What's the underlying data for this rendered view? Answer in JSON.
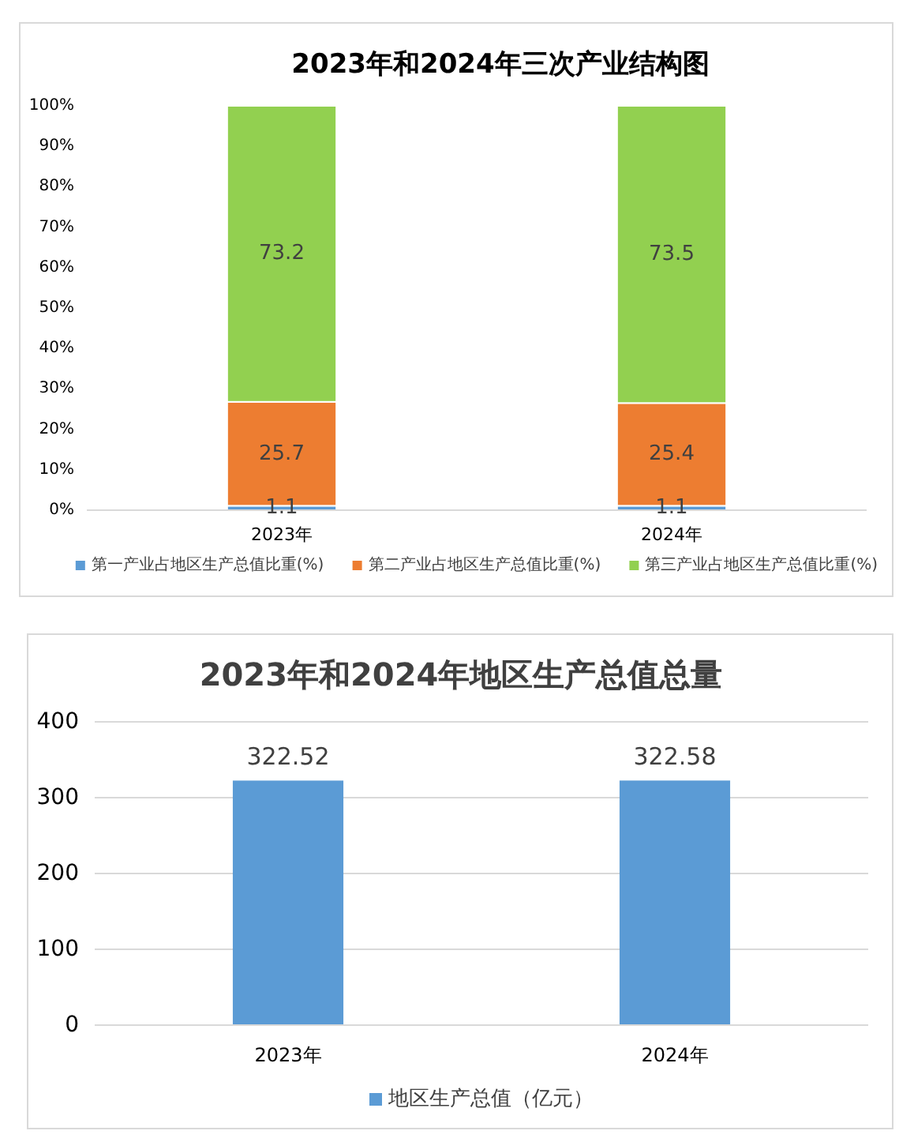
{
  "chart_data": [
    {
      "type": "bar",
      "title": "2023年和2024年三次产业结构图",
      "categories": [
        "2023年",
        "2024年"
      ],
      "stacked": true,
      "series": [
        {
          "name": "第一产业占地区生产总值比重(%)",
          "color": "#5b9bd5",
          "values": [
            1.1,
            1.1
          ]
        },
        {
          "name": "第二产业占地区生产总值比重(%)",
          "color": "#ed7d31",
          "values": [
            25.7,
            25.4
          ]
        },
        {
          "name": "第三产业占地区生产总值比重(%)",
          "color": "#92d050",
          "values": [
            73.2,
            73.5
          ]
        }
      ],
      "ylim": [
        0,
        100
      ],
      "yticks": [
        {
          "value": 0,
          "label": "0%"
        },
        {
          "value": 10,
          "label": "10%"
        },
        {
          "value": 20,
          "label": "20%"
        },
        {
          "value": 30,
          "label": "30%"
        },
        {
          "value": 40,
          "label": "40%"
        },
        {
          "value": 50,
          "label": "50%"
        },
        {
          "value": 60,
          "label": "60%"
        },
        {
          "value": 70,
          "label": "70%"
        },
        {
          "value": 80,
          "label": "80%"
        },
        {
          "value": 90,
          "label": "90%"
        },
        {
          "value": 100,
          "label": "100%"
        }
      ],
      "data_labels": true,
      "legend": "bottom"
    },
    {
      "type": "bar",
      "title": "2023年和2024年地区生产总值总量",
      "categories": [
        "2023年",
        "2024年"
      ],
      "series": [
        {
          "name": "地区生产总值（亿元）",
          "color": "#5b9bd5",
          "values": [
            322.52,
            322.58
          ]
        }
      ],
      "ylim": [
        0,
        400
      ],
      "yticks": [
        0,
        100,
        200,
        300,
        400
      ],
      "grid": "y",
      "data_labels": true,
      "legend": "bottom"
    }
  ]
}
